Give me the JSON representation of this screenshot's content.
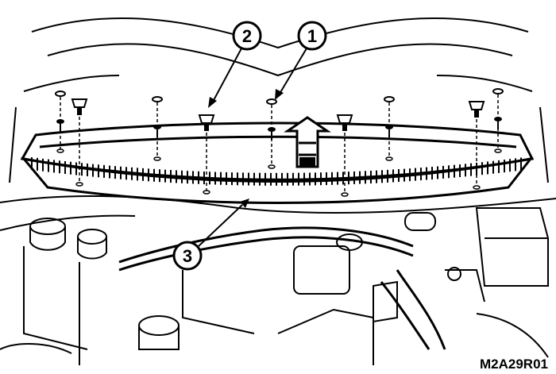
{
  "figure": {
    "id_label": "M2A29R01",
    "callouts": [
      {
        "number": "1"
      },
      {
        "number": "2"
      },
      {
        "number": "3"
      }
    ]
  },
  "colors": {
    "ink": "#000000",
    "paper": "#ffffff"
  }
}
